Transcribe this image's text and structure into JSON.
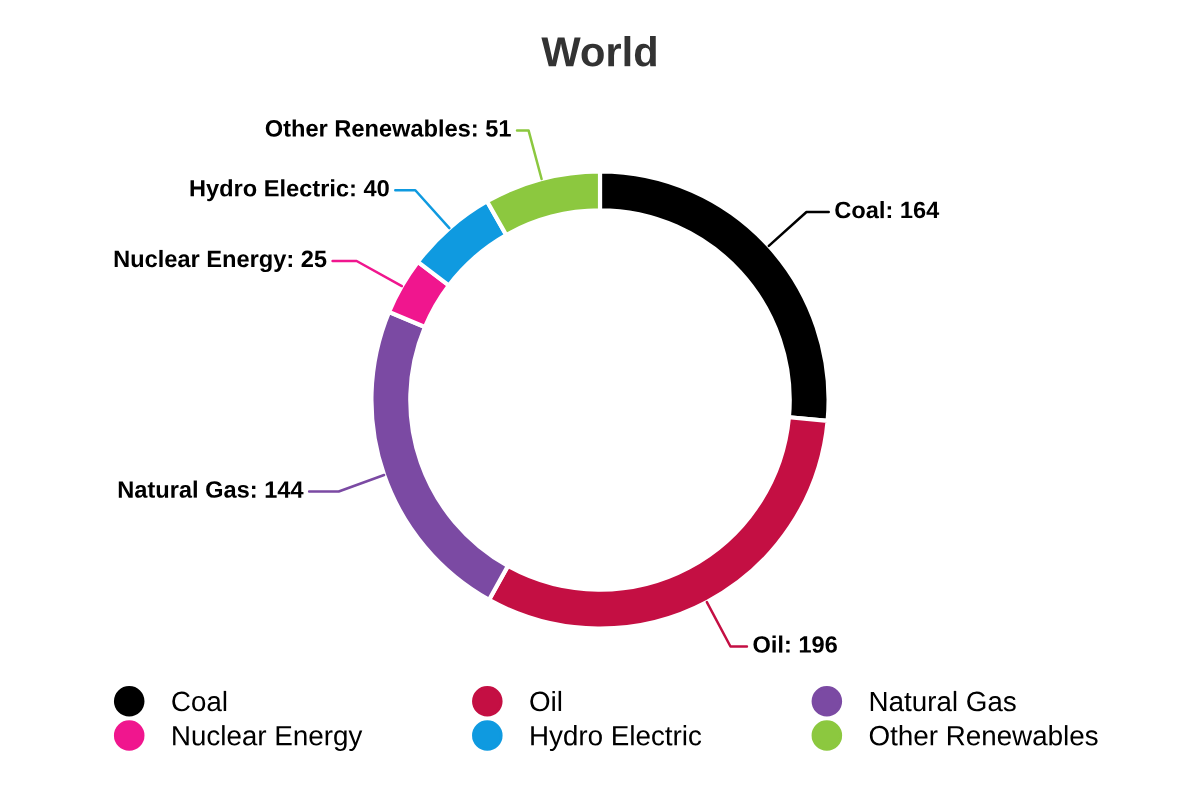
{
  "chart_data": {
    "type": "donut",
    "title": "World",
    "categories": [
      "Coal",
      "Oil",
      "Natural Gas",
      "Nuclear Energy",
      "Hydro Electric",
      "Other Renewables"
    ],
    "values": [
      164,
      196,
      144,
      25,
      40,
      51
    ],
    "colors": [
      "#000000",
      "#c40f43",
      "#7b4aa3",
      "#f0168e",
      "#0f9ae0",
      "#8cc83f"
    ],
    "value_labels": [
      "Coal: 164",
      "Oil: 196",
      "Natural Gas: 144",
      "Nuclear Energy: 25",
      "Hydro Electric: 40",
      "Other Renewables: 51"
    ],
    "legend": "bottom"
  }
}
